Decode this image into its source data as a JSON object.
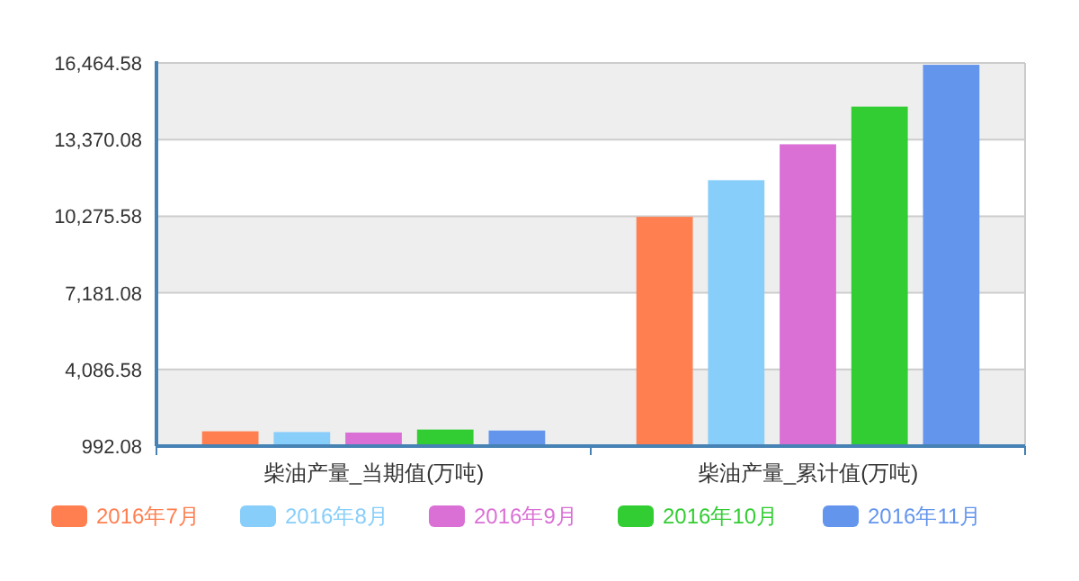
{
  "chart_data": {
    "type": "bar",
    "categories": [
      "柴油产量_当期值(万吨)",
      "柴油产量_累计值(万吨)"
    ],
    "series": [
      {
        "name": "2016年7月",
        "color": "#ff7f50",
        "values": [
          1590,
          10250
        ]
      },
      {
        "name": "2016年8月",
        "color": "#87cefa",
        "values": [
          1560,
          11730
        ]
      },
      {
        "name": "2016年9月",
        "color": "#da70d6",
        "values": [
          1540,
          13180
        ]
      },
      {
        "name": "2016年10月",
        "color": "#32cd32",
        "values": [
          1660,
          14700
        ]
      },
      {
        "name": "2016年11月",
        "color": "#6495ed",
        "values": [
          1620,
          16390
        ]
      }
    ],
    "ylim": [
      992.08,
      16464.58
    ],
    "yticks": [
      {
        "value": 992.08,
        "label": "992.08"
      },
      {
        "value": 4086.58,
        "label": "4,086.58"
      },
      {
        "value": 7181.08,
        "label": "7,181.08"
      },
      {
        "value": 10275.58,
        "label": "10,275.58"
      },
      {
        "value": 13370.08,
        "label": "13,370.08"
      },
      {
        "value": 16464.58,
        "label": "16,464.58"
      }
    ],
    "grid": "y",
    "legend": "bottom"
  }
}
